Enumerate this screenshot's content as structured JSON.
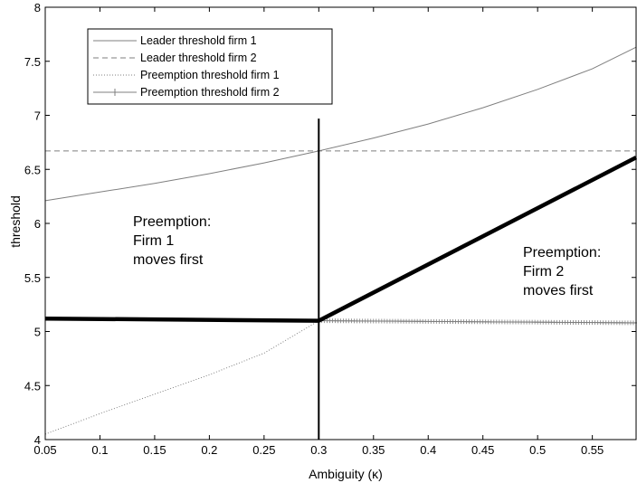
{
  "chart_data": {
    "type": "line",
    "title": "",
    "xlabel": "Ambiguity (κ)",
    "ylabel": "threshold",
    "xlim": [
      0.05,
      0.59
    ],
    "ylim": [
      4,
      8
    ],
    "xticks": [
      0.05,
      0.1,
      0.15,
      0.2,
      0.25,
      0.3,
      0.35,
      0.4,
      0.45,
      0.5,
      0.55
    ],
    "xtick_labels": [
      "0.05",
      "0.1",
      "0.15",
      "0.2",
      "0.25",
      "0.3",
      "0.35",
      "0.4",
      "0.45",
      "0.5",
      "0.55"
    ],
    "yticks": [
      4,
      4.5,
      5,
      5.5,
      6,
      6.5,
      7,
      7.5,
      8
    ],
    "ytick_labels": [
      "4",
      "4.5",
      "5",
      "5.5",
      "6",
      "6.5",
      "7",
      "7.5",
      "8"
    ],
    "grid": false,
    "legend_position": "top-left",
    "series": [
      {
        "name": "Leader threshold firm 1",
        "style": "solid-thin",
        "color": "#7f7f7f",
        "x": [
          0.05,
          0.1,
          0.15,
          0.2,
          0.25,
          0.3,
          0.35,
          0.4,
          0.45,
          0.5,
          0.55,
          0.59
        ],
        "y": [
          6.21,
          6.29,
          6.37,
          6.46,
          6.56,
          6.67,
          6.79,
          6.92,
          7.07,
          7.24,
          7.43,
          7.63
        ]
      },
      {
        "name": "Leader threshold firm 2",
        "style": "dashed",
        "color": "#7f7f7f",
        "x": [
          0.05,
          0.59
        ],
        "y": [
          6.67,
          6.67
        ]
      },
      {
        "name": "Preemption threshold firm 1",
        "style": "dotted",
        "color": "#7f7f7f",
        "x": [
          0.05,
          0.1,
          0.15,
          0.2,
          0.25,
          0.3
        ],
        "y": [
          4.05,
          4.24,
          4.42,
          4.6,
          4.8,
          5.1
        ]
      },
      {
        "name": "Preemption threshold firm 2",
        "style": "plus-markers",
        "color": "#7f7f7f",
        "x": [
          0.3,
          0.59
        ],
        "y": [
          5.1,
          5.08
        ]
      }
    ],
    "overlays": [
      {
        "style": "thick",
        "x": [
          0.05,
          0.3
        ],
        "y": [
          5.12,
          5.1
        ]
      },
      {
        "style": "thick",
        "x": [
          0.3,
          0.59
        ],
        "y": [
          5.1,
          6.61
        ]
      },
      {
        "style": "vertical",
        "x": [
          0.3,
          0.3
        ],
        "y": [
          4,
          6.97
        ]
      }
    ],
    "annotations": {
      "firm1": [
        "Preemption:",
        "Firm 1",
        "moves first"
      ],
      "firm2": [
        "Preemption:",
        "Firm 2",
        "moves first"
      ]
    }
  }
}
